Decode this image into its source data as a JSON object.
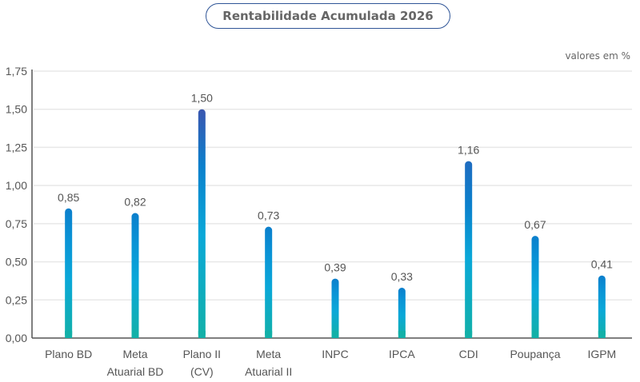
{
  "chart_data": {
    "type": "bar",
    "title": "Rentabilidade Acumulada 2026",
    "units_note": "valores em %",
    "categories": [
      [
        "Plano BD"
      ],
      [
        "Meta",
        "Atuarial BD"
      ],
      [
        "Plano II",
        "(CV)"
      ],
      [
        "Meta",
        "Atuarial II"
      ],
      [
        "INPC"
      ],
      [
        "IPCA"
      ],
      [
        "CDI"
      ],
      [
        "Poupança"
      ],
      [
        "IGPM"
      ]
    ],
    "values": [
      0.85,
      0.82,
      1.5,
      0.73,
      0.39,
      0.33,
      1.16,
      0.67,
      0.41
    ],
    "value_labels": [
      "0,85",
      "0,82",
      "1,50",
      "0,73",
      "0,39",
      "0,33",
      "1,16",
      "0,67",
      "0,41"
    ],
    "yticks": [
      "0,00",
      "0,25",
      "0,50",
      "0,75",
      "1,00",
      "1,25",
      "1,50",
      "1,75"
    ],
    "ylim": [
      0,
      1.75
    ],
    "grid": true,
    "colors": {
      "top_dark": "#3a56b0",
      "mid": "#0c96d8",
      "bottom": "#12b0a8",
      "axis": "#555555",
      "grid": "#e8e8e8",
      "title_border": "#2f5597"
    }
  }
}
